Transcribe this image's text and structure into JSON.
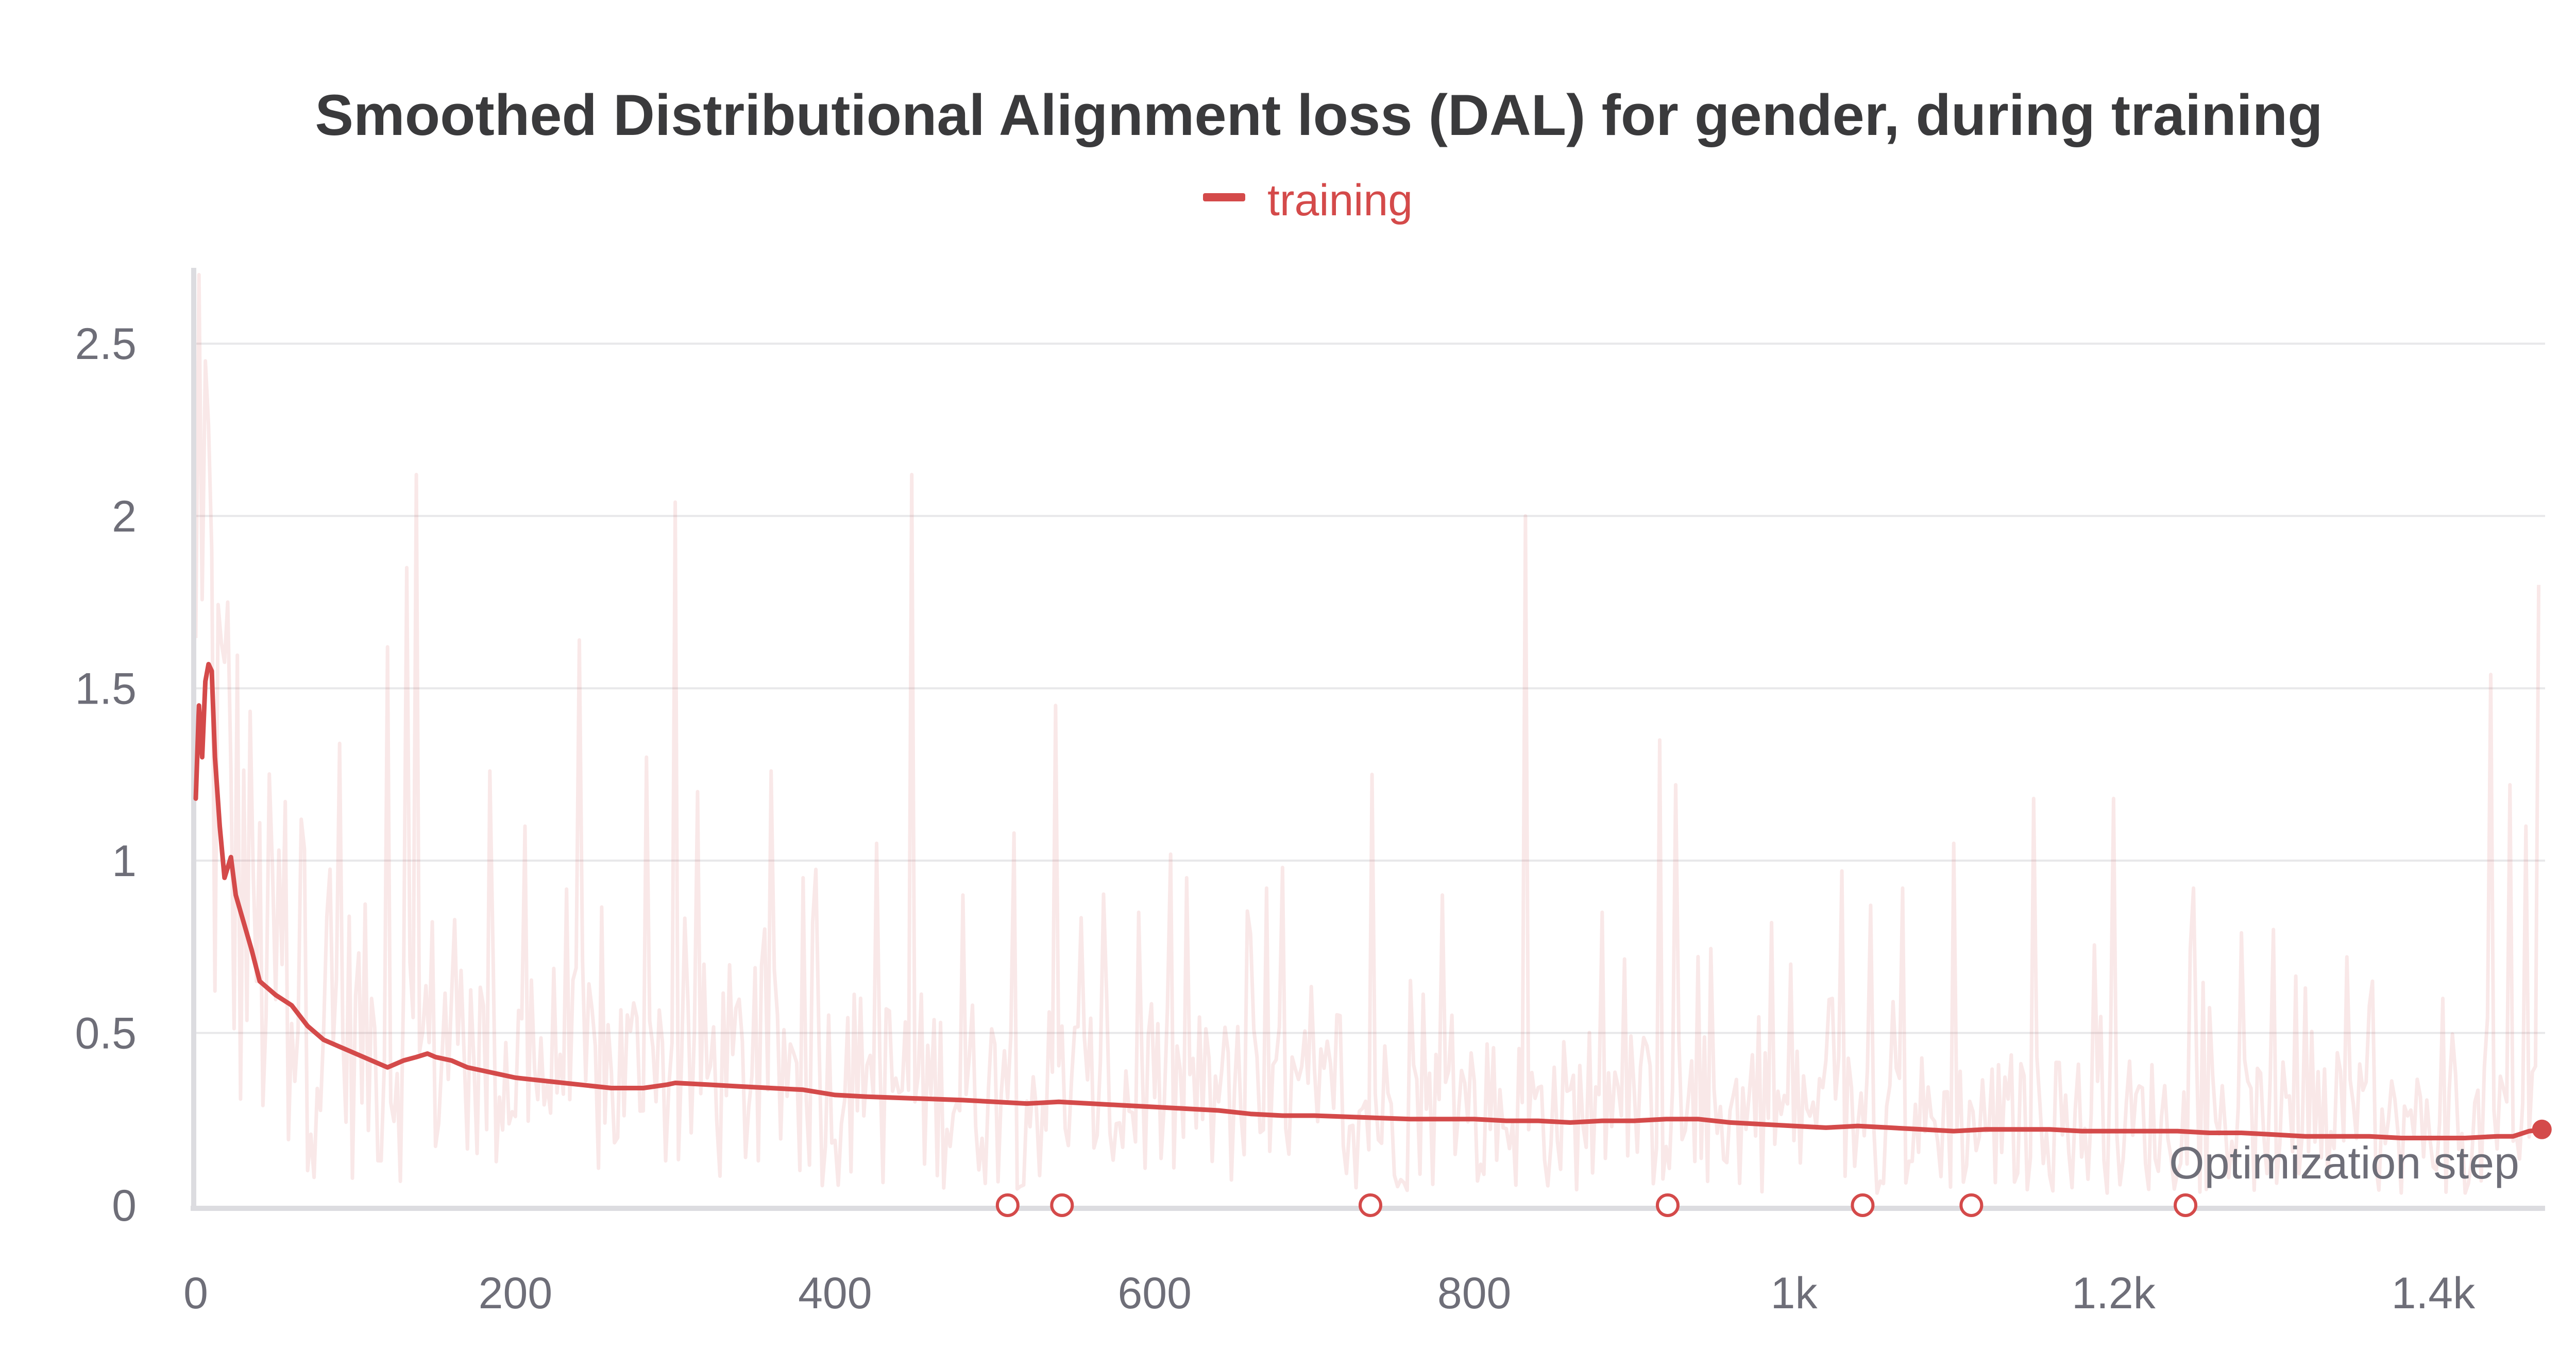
{
  "chart_data": {
    "type": "line",
    "title": "Smoothed Distributional Alignment loss (DAL) for gender, during training",
    "xlabel": "Optimization step",
    "ylabel": "",
    "xlim": [
      0,
      1470
    ],
    "ylim": [
      0,
      2.72
    ],
    "x_ticks": [
      0,
      200,
      400,
      600,
      800,
      1000,
      1200,
      1400
    ],
    "x_tick_labels": [
      "0",
      "200",
      "400",
      "600",
      "800",
      "1k",
      "1.2k",
      "1.4k"
    ],
    "y_ticks": [
      0,
      0.5,
      1,
      1.5,
      2,
      2.5
    ],
    "y_tick_labels": [
      "0",
      "0.5",
      "1",
      "1.5",
      "2",
      "2.5"
    ],
    "grid": true,
    "legend": {
      "position": "top-center",
      "entries": [
        "training"
      ]
    },
    "colors": {
      "training": "#d44a4a"
    },
    "series": [
      {
        "name": "training",
        "x": [
          0,
          2,
          4,
          6,
          8,
          10,
          12,
          15,
          18,
          22,
          25,
          30,
          35,
          40,
          50,
          60,
          70,
          80,
          90,
          100,
          110,
          120,
          130,
          138,
          145,
          150,
          160,
          170,
          180,
          190,
          200,
          210,
          220,
          240,
          260,
          280,
          295,
          300,
          320,
          340,
          360,
          380,
          400,
          420,
          450,
          480,
          500,
          520,
          540,
          560,
          580,
          600,
          620,
          640,
          660,
          680,
          700,
          730,
          760,
          780,
          800,
          820,
          840,
          860,
          880,
          900,
          920,
          940,
          960,
          980,
          1000,
          1020,
          1040,
          1060,
          1080,
          1100,
          1120,
          1140,
          1160,
          1180,
          1200,
          1220,
          1240,
          1260,
          1280,
          1300,
          1320,
          1340,
          1360,
          1380,
          1400,
          1420,
          1440,
          1450,
          1460,
          1470
        ],
        "y": [
          1.18,
          1.45,
          1.3,
          1.52,
          1.57,
          1.55,
          1.3,
          1.1,
          0.95,
          1.01,
          0.9,
          0.82,
          0.74,
          0.65,
          0.61,
          0.58,
          0.52,
          0.48,
          0.46,
          0.44,
          0.42,
          0.4,
          0.42,
          0.43,
          0.44,
          0.43,
          0.42,
          0.4,
          0.39,
          0.38,
          0.37,
          0.365,
          0.36,
          0.35,
          0.34,
          0.34,
          0.35,
          0.355,
          0.35,
          0.345,
          0.34,
          0.335,
          0.32,
          0.315,
          0.31,
          0.305,
          0.3,
          0.295,
          0.3,
          0.295,
          0.29,
          0.285,
          0.28,
          0.275,
          0.265,
          0.26,
          0.26,
          0.255,
          0.25,
          0.25,
          0.25,
          0.245,
          0.245,
          0.24,
          0.245,
          0.245,
          0.25,
          0.25,
          0.24,
          0.235,
          0.23,
          0.225,
          0.23,
          0.225,
          0.22,
          0.215,
          0.22,
          0.22,
          0.22,
          0.215,
          0.215,
          0.215,
          0.215,
          0.21,
          0.21,
          0.205,
          0.2,
          0.2,
          0.2,
          0.195,
          0.195,
          0.195,
          0.2,
          0.2,
          0.215,
          0.22
        ]
      }
    ],
    "raw_spikes": [
      {
        "x": 2,
        "y": 2.7
      },
      {
        "x": 6,
        "y": 2.45
      },
      {
        "x": 10,
        "y": 1.9
      },
      {
        "x": 20,
        "y": 1.75
      },
      {
        "x": 36,
        "y": 0.95
      },
      {
        "x": 65,
        "y": 1.12
      },
      {
        "x": 90,
        "y": 1.34
      },
      {
        "x": 120,
        "y": 1.62
      },
      {
        "x": 132,
        "y": 1.85
      },
      {
        "x": 138,
        "y": 2.12
      },
      {
        "x": 183,
        "y": 1.26
      },
      {
        "x": 206,
        "y": 1.1
      },
      {
        "x": 240,
        "y": 1.64
      },
      {
        "x": 282,
        "y": 1.3
      },
      {
        "x": 300,
        "y": 2.04
      },
      {
        "x": 313,
        "y": 1.2
      },
      {
        "x": 360,
        "y": 1.26
      },
      {
        "x": 380,
        "y": 0.95
      },
      {
        "x": 425,
        "y": 1.05
      },
      {
        "x": 447,
        "y": 2.12
      },
      {
        "x": 480,
        "y": 0.9
      },
      {
        "x": 512,
        "y": 1.08
      },
      {
        "x": 538,
        "y": 1.45
      },
      {
        "x": 590,
        "y": 0.85
      },
      {
        "x": 620,
        "y": 0.95
      },
      {
        "x": 680,
        "y": 0.98
      },
      {
        "x": 735,
        "y": 1.25
      },
      {
        "x": 780,
        "y": 0.9
      },
      {
        "x": 832,
        "y": 2.0
      },
      {
        "x": 880,
        "y": 0.85
      },
      {
        "x": 915,
        "y": 1.35
      },
      {
        "x": 925,
        "y": 1.22
      },
      {
        "x": 985,
        "y": 0.82
      },
      {
        "x": 1030,
        "y": 0.97
      },
      {
        "x": 1068,
        "y": 0.92
      },
      {
        "x": 1100,
        "y": 1.05
      },
      {
        "x": 1150,
        "y": 1.18
      },
      {
        "x": 1200,
        "y": 1.18
      },
      {
        "x": 1250,
        "y": 0.92
      },
      {
        "x": 1300,
        "y": 0.8
      },
      {
        "x": 1362,
        "y": 0.65
      },
      {
        "x": 1405,
        "y": 0.6
      },
      {
        "x": 1435,
        "y": 1.54
      },
      {
        "x": 1448,
        "y": 1.22
      },
      {
        "x": 1458,
        "y": 1.1
      },
      {
        "x": 1465,
        "y": 1.8
      }
    ],
    "markers_x": [
      508,
      542,
      735,
      921,
      1043,
      1111,
      1245
    ],
    "end_point": {
      "x": 1468,
      "y": 0.22
    }
  }
}
